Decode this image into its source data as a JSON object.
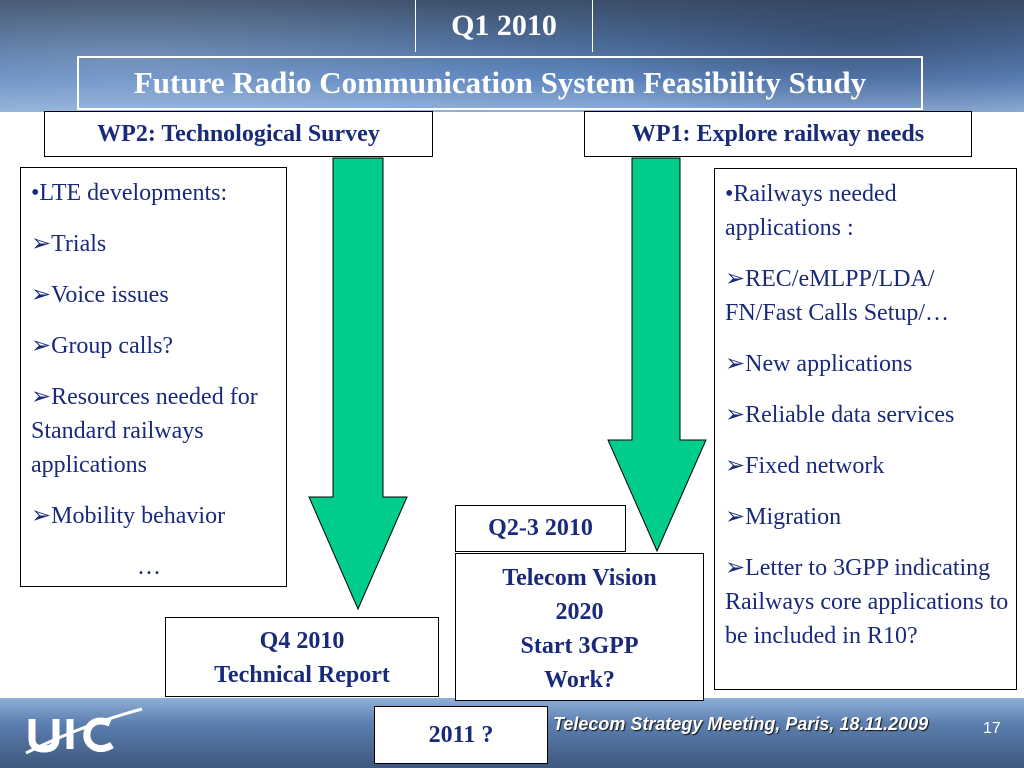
{
  "header": {
    "period": "Q1 2010",
    "title": "Future Radio Communication System Feasibility Study"
  },
  "wp2": {
    "label": "WP2: Technological Survey",
    "items": [
      "•LTE developments:",
      "➢Trials",
      "➢Voice issues",
      "➢Group calls?",
      "➢Resources needed for Standard railways applications",
      "➢Mobility behavior",
      "…"
    ]
  },
  "wp1": {
    "label": "WP1: Explore railway needs",
    "items": [
      "•Railways needed applications :",
      "➢REC/eMLPP/LDA/ FN/Fast Calls Setup/…",
      "➢New applications",
      "➢Reliable data services",
      "➢Fixed network",
      "➢Migration",
      "➢Letter to 3GPP indicating Railways core applications to be included in R10?"
    ]
  },
  "milestones": {
    "q4": {
      "line1": "Q4 2010",
      "line2": "Technical Report"
    },
    "q23": {
      "label": "Q2-3 2010"
    },
    "vision": {
      "line1": "Telecom Vision",
      "line2": "2020",
      "line3": "Start 3GPP",
      "line4": "Work?"
    },
    "y2011": "2011 ?"
  },
  "footer": {
    "meeting": "Telecom Strategy Meeting, Paris, 18.11.2009",
    "page": "17",
    "logo_text": "UIC"
  },
  "colors": {
    "arrow": "#00cc8c",
    "text": "#1a2a7a"
  }
}
